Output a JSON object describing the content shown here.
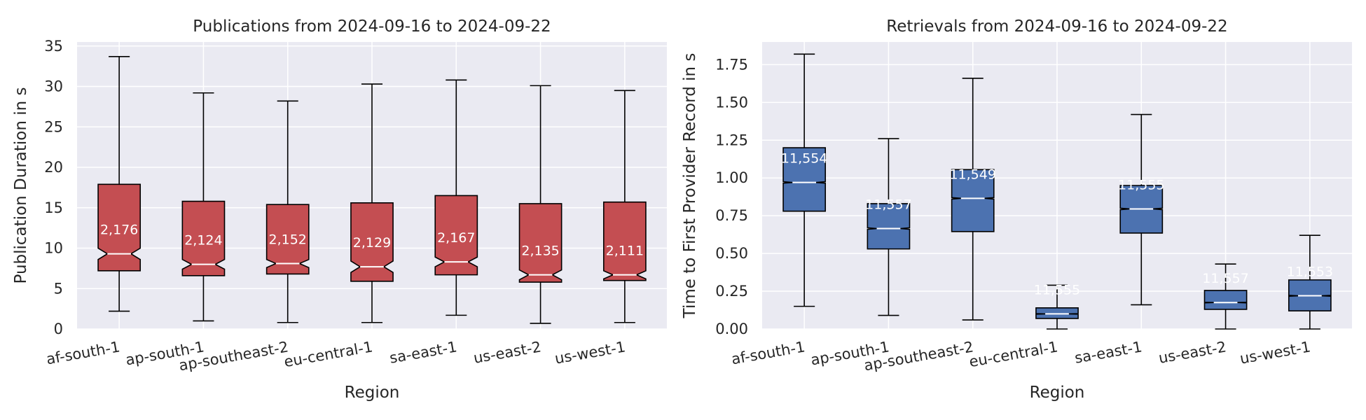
{
  "chart_data": [
    {
      "type": "box",
      "title": "Publications from 2024-09-16 to 2024-09-22",
      "xlabel": "Region",
      "ylabel": "Publication Duration in s",
      "ylim": [
        0,
        35.5
      ],
      "yticks": [
        0,
        5,
        10,
        15,
        20,
        25,
        30,
        35
      ],
      "ytick_labels": [
        "0",
        "5",
        "10",
        "15",
        "20",
        "25",
        "30",
        "35"
      ],
      "notched": true,
      "grid": true,
      "color": "#c44e52",
      "categories": [
        "af-south-1",
        "ap-south-1",
        "ap-southeast-2",
        "eu-central-1",
        "sa-east-1",
        "us-east-2",
        "us-west-1"
      ],
      "boxes": [
        {
          "whislo": 2.2,
          "q1": 7.2,
          "med": 9.3,
          "q3": 17.9,
          "whishi": 33.7,
          "notch_lo": 8.6,
          "notch_hi": 10.0,
          "count_label": "2,176"
        },
        {
          "whislo": 1.0,
          "q1": 6.6,
          "med": 8.0,
          "q3": 15.8,
          "whishi": 29.2,
          "notch_lo": 7.4,
          "notch_hi": 8.6,
          "count_label": "2,124"
        },
        {
          "whislo": 0.8,
          "q1": 6.8,
          "med": 8.1,
          "q3": 15.4,
          "whishi": 28.2,
          "notch_lo": 7.6,
          "notch_hi": 8.6,
          "count_label": "2,152"
        },
        {
          "whislo": 0.8,
          "q1": 5.9,
          "med": 7.7,
          "q3": 15.6,
          "whishi": 30.3,
          "notch_lo": 7.0,
          "notch_hi": 8.4,
          "count_label": "2,129"
        },
        {
          "whislo": 1.7,
          "q1": 6.7,
          "med": 8.3,
          "q3": 16.5,
          "whishi": 30.8,
          "notch_lo": 7.7,
          "notch_hi": 8.9,
          "count_label": "2,167"
        },
        {
          "whislo": 0.7,
          "q1": 5.8,
          "med": 6.7,
          "q3": 15.5,
          "whishi": 30.1,
          "notch_lo": 6.1,
          "notch_hi": 7.3,
          "count_label": "2,135"
        },
        {
          "whislo": 0.8,
          "q1": 6.0,
          "med": 6.7,
          "q3": 15.7,
          "whishi": 29.5,
          "notch_lo": 6.2,
          "notch_hi": 7.2,
          "count_label": "2,111"
        }
      ]
    },
    {
      "type": "box",
      "title": "Retrievals from 2024-09-16 to 2024-09-22",
      "xlabel": "Region",
      "ylabel": "Time to First Provider Record in s",
      "ylim": [
        0,
        1.9
      ],
      "yticks": [
        0,
        0.25,
        0.5,
        0.75,
        1.0,
        1.25,
        1.5,
        1.75
      ],
      "ytick_labels": [
        "0.00",
        "0.25",
        "0.50",
        "0.75",
        "1.00",
        "1.25",
        "1.50",
        "1.75"
      ],
      "notched": true,
      "grid": true,
      "color": "#4c72b0",
      "categories": [
        "af-south-1",
        "ap-south-1",
        "ap-southeast-2",
        "eu-central-1",
        "sa-east-1",
        "us-east-2",
        "us-west-1"
      ],
      "boxes": [
        {
          "whislo": 0.15,
          "q1": 0.78,
          "med": 0.97,
          "q3": 1.2,
          "whishi": 1.82,
          "notch_lo": 0.965,
          "notch_hi": 0.975,
          "count_label": "11,554"
        },
        {
          "whislo": 0.09,
          "q1": 0.53,
          "med": 0.665,
          "q3": 0.83,
          "whishi": 1.26,
          "notch_lo": 0.66,
          "notch_hi": 0.67,
          "count_label": "11,557"
        },
        {
          "whislo": 0.06,
          "q1": 0.645,
          "med": 0.865,
          "q3": 1.055,
          "whishi": 1.66,
          "notch_lo": 0.86,
          "notch_hi": 0.87,
          "count_label": "11,549"
        },
        {
          "whislo": 0.0,
          "q1": 0.07,
          "med": 0.1,
          "q3": 0.14,
          "whishi": 0.29,
          "notch_lo": 0.098,
          "notch_hi": 0.102,
          "count_label": "11,555"
        },
        {
          "whislo": 0.16,
          "q1": 0.635,
          "med": 0.795,
          "q3": 0.95,
          "whishi": 1.42,
          "notch_lo": 0.79,
          "notch_hi": 0.8,
          "count_label": "11,555"
        },
        {
          "whislo": 0.0,
          "q1": 0.13,
          "med": 0.175,
          "q3": 0.255,
          "whishi": 0.43,
          "notch_lo": 0.173,
          "notch_hi": 0.177,
          "count_label": "11,557"
        },
        {
          "whislo": 0.0,
          "q1": 0.12,
          "med": 0.22,
          "q3": 0.325,
          "whishi": 0.62,
          "notch_lo": 0.217,
          "notch_hi": 0.223,
          "count_label": "11,553"
        }
      ]
    }
  ]
}
